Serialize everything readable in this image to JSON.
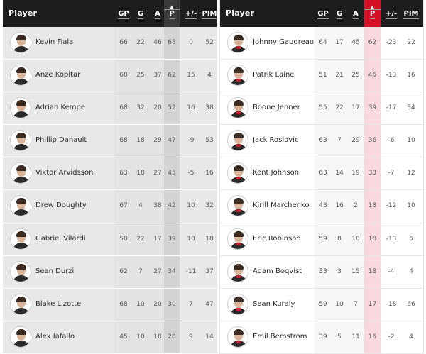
{
  "left": {
    "header": {
      "player": "Player",
      "gp": "GP",
      "g": "G",
      "a": "A",
      "p": "P",
      "pm": "+/-",
      "pim": "PIM"
    },
    "sort_indicator": "▲",
    "rows": [
      {
        "name": "Kevin Fiala",
        "gp": "66",
        "g": "22",
        "a": "46",
        "p": "68",
        "pm": "0",
        "pim": "52"
      },
      {
        "name": "Anze Kopitar",
        "gp": "68",
        "g": "25",
        "a": "37",
        "p": "62",
        "pm": "15",
        "pim": "4"
      },
      {
        "name": "Adrian Kempe",
        "gp": "68",
        "g": "32",
        "a": "20",
        "p": "52",
        "pm": "16",
        "pim": "38"
      },
      {
        "name": "Phillip Danault",
        "gp": "68",
        "g": "18",
        "a": "29",
        "p": "47",
        "pm": "-9",
        "pim": "53"
      },
      {
        "name": "Viktor Arvidsson",
        "gp": "63",
        "g": "18",
        "a": "27",
        "p": "45",
        "pm": "-5",
        "pim": "16"
      },
      {
        "name": "Drew Doughty",
        "gp": "67",
        "g": "4",
        "a": "38",
        "p": "42",
        "pm": "10",
        "pim": "32"
      },
      {
        "name": "Gabriel Vilardi",
        "gp": "58",
        "g": "22",
        "a": "17",
        "p": "39",
        "pm": "10",
        "pim": "18"
      },
      {
        "name": "Sean Durzi",
        "gp": "62",
        "g": "7",
        "a": "27",
        "p": "34",
        "pm": "-11",
        "pim": "37"
      },
      {
        "name": "Blake Lizotte",
        "gp": "68",
        "g": "10",
        "a": "20",
        "p": "30",
        "pm": "7",
        "pim": "47"
      },
      {
        "name": "Alex Iafallo",
        "gp": "45",
        "g": "10",
        "a": "18",
        "p": "28",
        "pm": "9",
        "pim": "14"
      }
    ]
  },
  "right": {
    "header": {
      "player": "Player",
      "gp": "GP",
      "g": "G",
      "a": "A",
      "p": "P",
      "pm": "+/-",
      "pim": "PIM"
    },
    "sort_indicator": "▲",
    "rows": [
      {
        "name": "Johnny Gaudreau",
        "gp": "64",
        "g": "17",
        "a": "45",
        "p": "62",
        "pm": "-23",
        "pim": "22"
      },
      {
        "name": "Patrik Laine",
        "gp": "51",
        "g": "21",
        "a": "25",
        "p": "46",
        "pm": "-13",
        "pim": "16"
      },
      {
        "name": "Boone Jenner",
        "gp": "55",
        "g": "22",
        "a": "17",
        "p": "39",
        "pm": "-17",
        "pim": "34"
      },
      {
        "name": "Jack Roslovic",
        "gp": "63",
        "g": "7",
        "a": "29",
        "p": "36",
        "pm": "-6",
        "pim": "10"
      },
      {
        "name": "Kent Johnson",
        "gp": "63",
        "g": "14",
        "a": "19",
        "p": "33",
        "pm": "-7",
        "pim": "12"
      },
      {
        "name": "Kirill Marchenko",
        "gp": "43",
        "g": "16",
        "a": "2",
        "p": "18",
        "pm": "-12",
        "pim": "10"
      },
      {
        "name": "Eric Robinson",
        "gp": "59",
        "g": "8",
        "a": "10",
        "p": "18",
        "pm": "-13",
        "pim": "6"
      },
      {
        "name": "Adam Boqvist",
        "gp": "33",
        "g": "3",
        "a": "15",
        "p": "18",
        "pm": "-4",
        "pim": "4"
      },
      {
        "name": "Sean Kuraly",
        "gp": "59",
        "g": "10",
        "a": "7",
        "p": "17",
        "pm": "-18",
        "pim": "66"
      },
      {
        "name": "Emil Bemstrom",
        "gp": "39",
        "g": "5",
        "a": "11",
        "p": "16",
        "pm": "-2",
        "pim": "4"
      }
    ]
  },
  "colors": {
    "header_bg": "#1d1d1d",
    "left_sorted": "#3a3a3a",
    "right_sorted": "#d50f25"
  },
  "icons": {
    "avatar": "player-headshot-icon",
    "sort": "sort-ascending-icon"
  }
}
